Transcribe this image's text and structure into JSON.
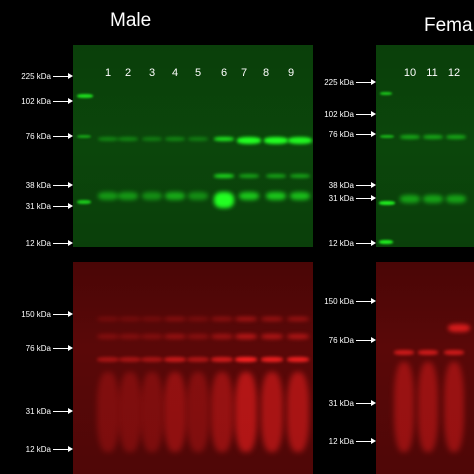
{
  "groups": [
    {
      "title": "Male"
    },
    {
      "title": "Fema"
    }
  ],
  "male_lanes": [
    "1",
    "2",
    "3",
    "4",
    "5",
    "6",
    "7",
    "8",
    "9"
  ],
  "female_lanes": [
    "10",
    "11",
    "12"
  ],
  "markers": {
    "male_green": [
      "225 kDa",
      "102 kDa",
      "76 kDa",
      "38 kDa",
      "31 kDa",
      "12 kDa"
    ],
    "male_red": [
      "150 kDa",
      "76 kDa",
      "31 kDa",
      "12 kDa"
    ],
    "female_green": [
      "225 kDa",
      "102 kDa",
      "76 kDa",
      "38 kDa",
      "31 kDa",
      "12 kDa"
    ],
    "female_red": [
      "150 kDa",
      "76 kDa",
      "31 kDa",
      "12 kDa"
    ]
  },
  "colors": {
    "background": "#000000",
    "green_channel": "#22ff22",
    "red_channel": "#ff2222"
  }
}
